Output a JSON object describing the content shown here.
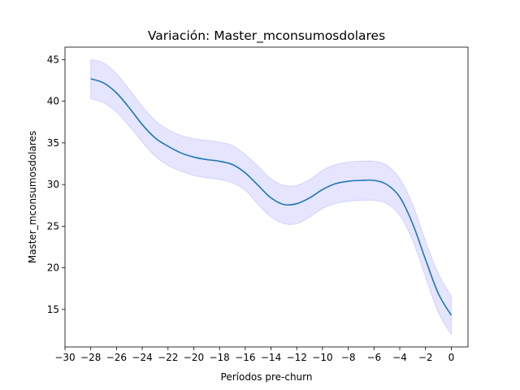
{
  "chart_data": {
    "type": "line",
    "title": "Variación: Master_mconsumosdolares",
    "xlabel": "Períodos pre-churn",
    "ylabel": "Master_mconsumosdolares",
    "xlim": [
      -30,
      1.3
    ],
    "ylim": [
      10.5,
      46.5
    ],
    "xticks": [
      -30,
      -28,
      -26,
      -24,
      -22,
      -20,
      -18,
      -16,
      -14,
      -12,
      -10,
      -8,
      -6,
      -4,
      -2,
      0
    ],
    "xtick_labels": [
      "−30",
      "−28",
      "−26",
      "−24",
      "−22",
      "−20",
      "−18",
      "−16",
      "−14",
      "−12",
      "−10",
      "−8",
      "−6",
      "−4",
      "−2",
      "0"
    ],
    "yticks": [
      15,
      20,
      25,
      30,
      35,
      40,
      45
    ],
    "ytick_labels": [
      "15",
      "20",
      "25",
      "30",
      "35",
      "40",
      "45"
    ],
    "grid": false,
    "legend": false,
    "line_color": "#1f77b4",
    "band_color": "#0000ff",
    "band_opacity": 0.1,
    "series": [
      {
        "x": [
          -28,
          -27,
          -26,
          -25,
          -24,
          -23,
          -22,
          -21,
          -20,
          -19,
          -18,
          -17,
          -16,
          -15,
          -14,
          -13,
          -12,
          -11,
          -10,
          -9,
          -8,
          -7,
          -6,
          -5,
          -4,
          -3,
          -2,
          -1,
          0
        ],
        "y": [
          42.7,
          42.2,
          41.0,
          39.2,
          37.2,
          35.6,
          34.6,
          33.8,
          33.3,
          33.0,
          32.8,
          32.4,
          31.4,
          29.9,
          28.4,
          27.6,
          27.7,
          28.4,
          29.4,
          30.1,
          30.4,
          30.5,
          30.5,
          30.0,
          28.5,
          25.3,
          21.0,
          16.9,
          14.3
        ],
        "lower": [
          40.3,
          39.8,
          38.7,
          37.0,
          35.1,
          33.4,
          32.3,
          31.6,
          31.1,
          30.8,
          30.6,
          30.2,
          29.3,
          27.6,
          26.1,
          25.3,
          25.3,
          26.1,
          27.1,
          27.7,
          28.0,
          28.1,
          28.1,
          27.7,
          26.3,
          23.3,
          18.9,
          14.6,
          12.0
        ],
        "upper": [
          45.0,
          44.6,
          43.3,
          41.4,
          39.4,
          37.7,
          36.6,
          35.9,
          35.5,
          35.3,
          35.1,
          34.7,
          33.6,
          32.2,
          30.7,
          29.9,
          29.9,
          30.6,
          31.7,
          32.4,
          32.7,
          32.8,
          32.8,
          32.3,
          30.7,
          27.6,
          23.2,
          19.3,
          16.6
        ]
      }
    ]
  }
}
